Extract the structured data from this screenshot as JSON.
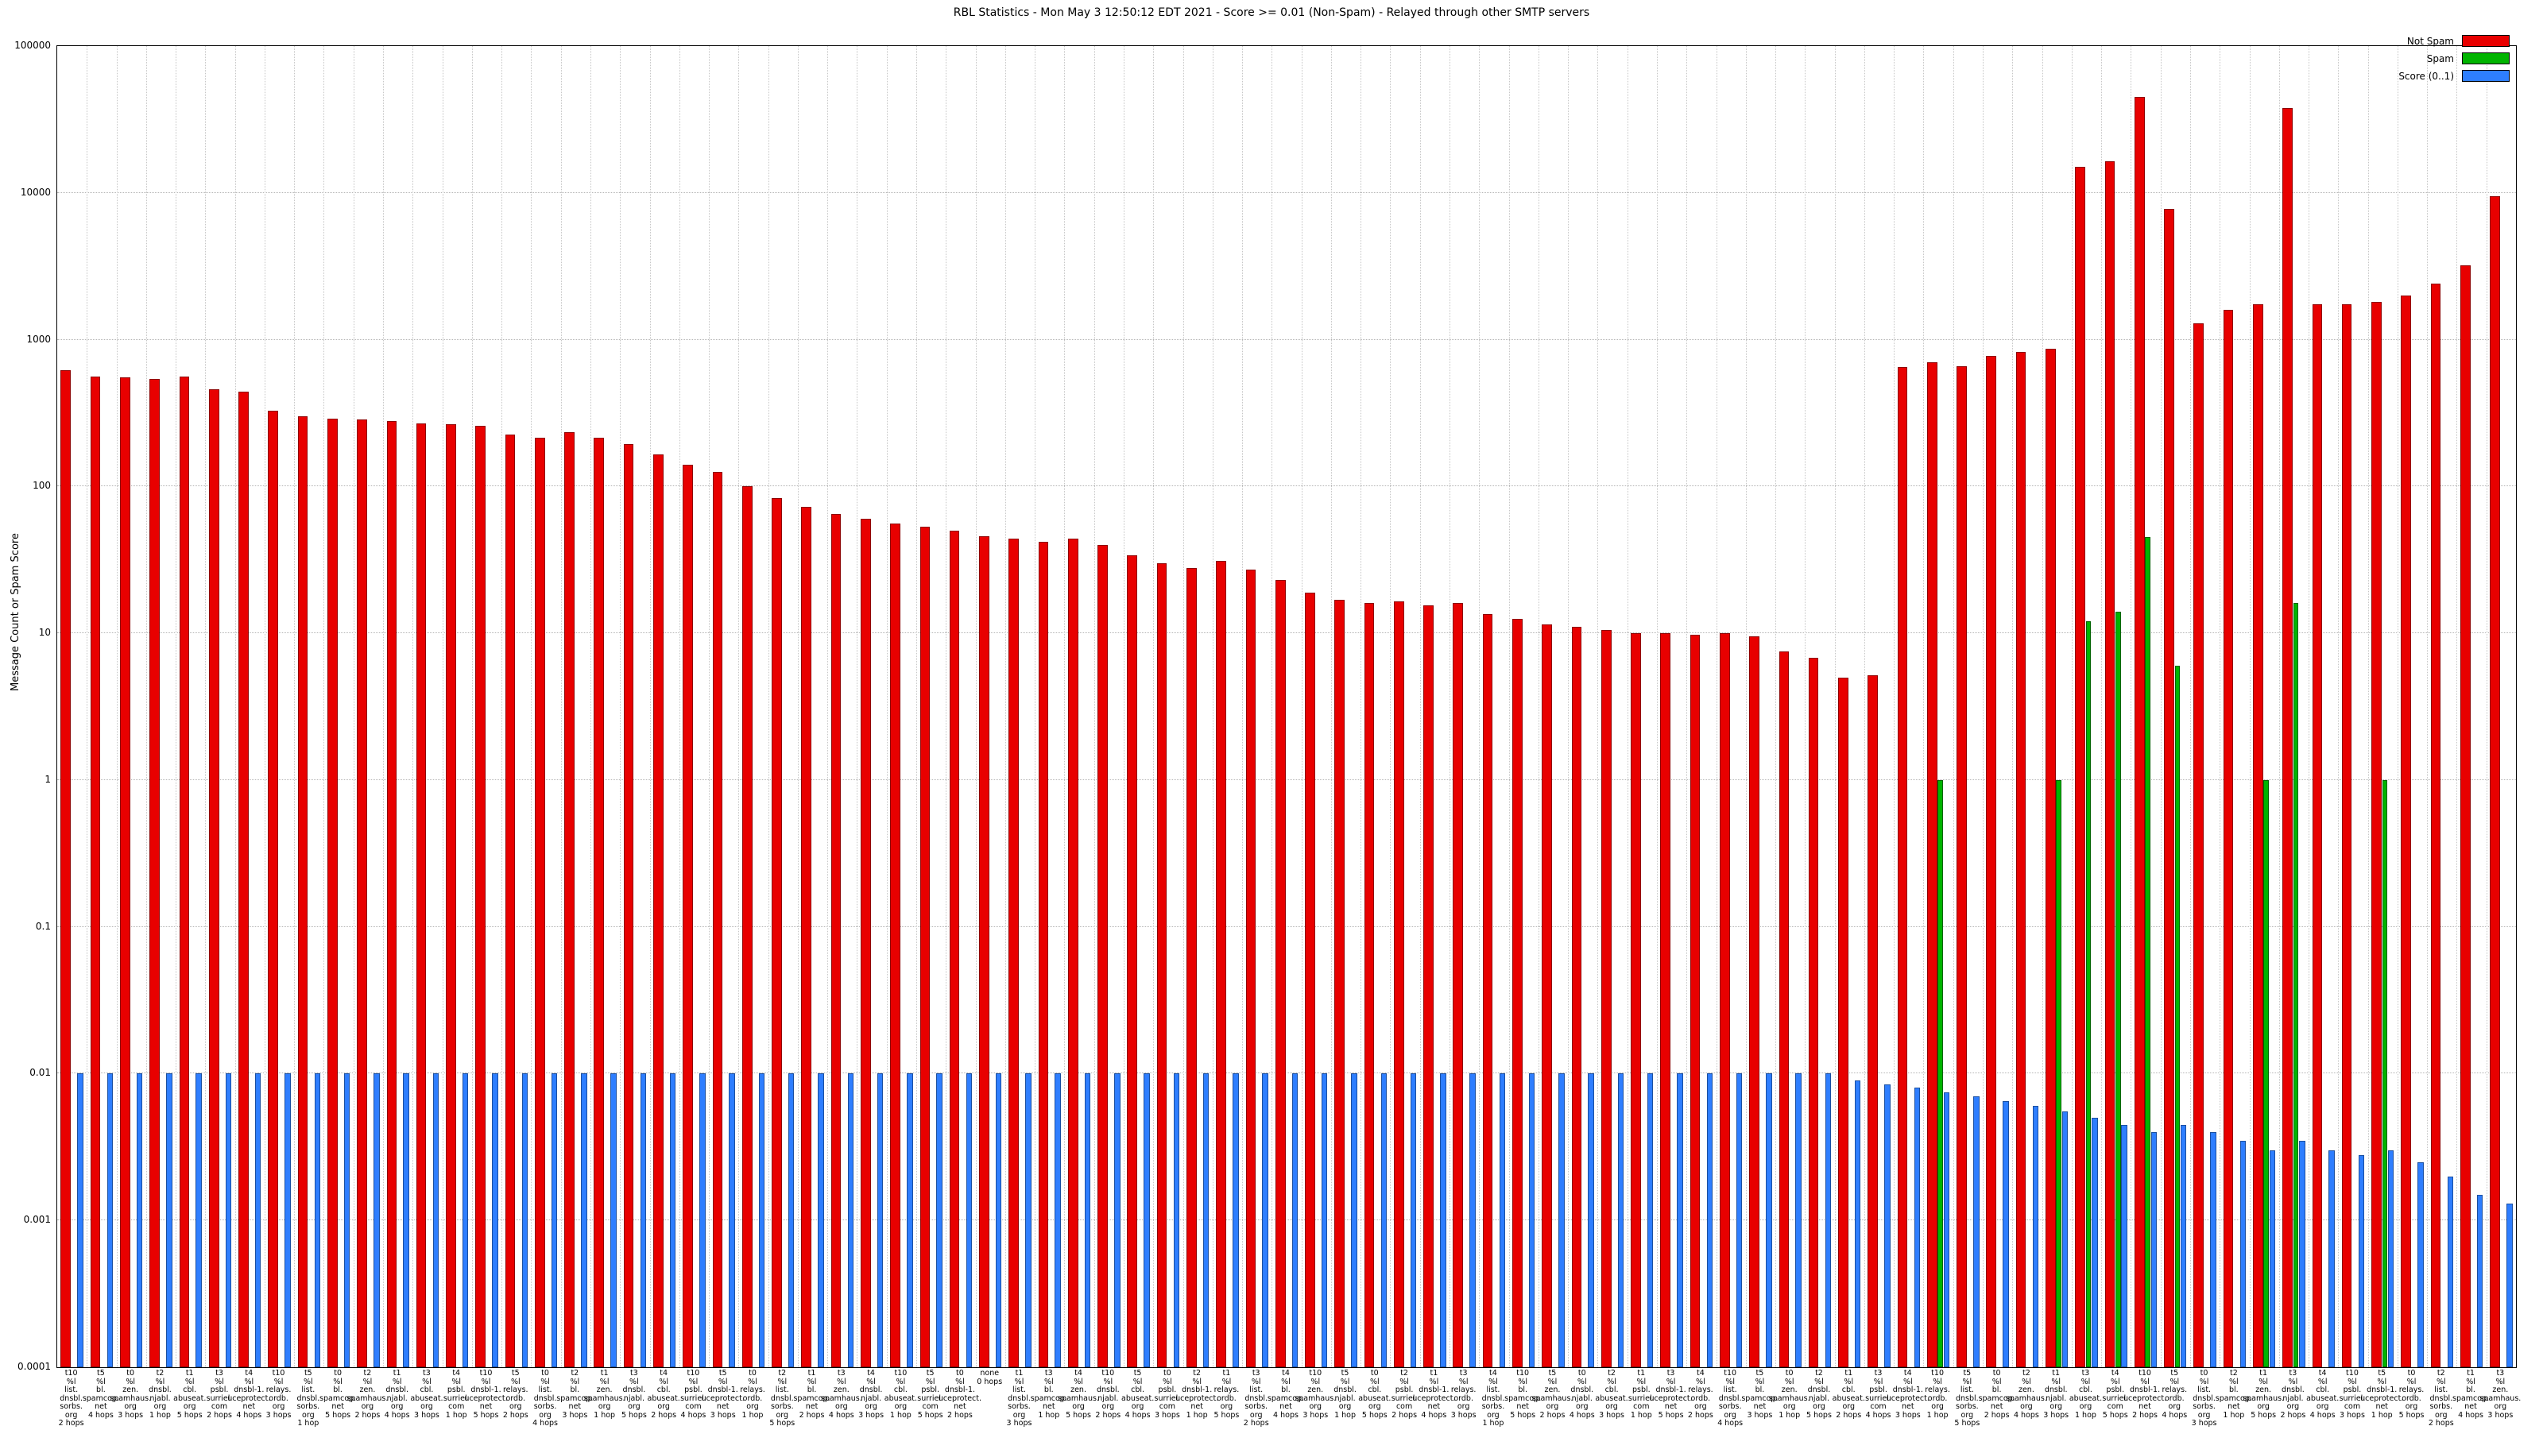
{
  "chart_data": {
    "type": "bar",
    "title": "RBL Statistics - Mon May  3 12:50:12 EDT 2021 - Score >= 0.01 (Non-Spam) - Relayed through other SMTP servers",
    "ylabel": "Message Count or Spam Score",
    "xlabel": "",
    "scale": "log",
    "ylim": [
      0.0001,
      100000
    ],
    "grid": true,
    "legend_position": "top-right",
    "y_ticks": [
      "100000",
      "10000",
      "1000",
      "100",
      "10",
      "1",
      "0.1",
      "0.01",
      "0.001",
      "0.0001"
    ],
    "legend": [
      {
        "label": "Not Spam",
        "color": "#e80000"
      },
      {
        "label": "Spam",
        "color": "#00b400"
      },
      {
        "label": "Score (0..1)",
        "color": "#2e7eff"
      }
    ],
    "series_note": "each group has bars: not_spam (red), spam (green, often absent), score (blue)",
    "groups": [
      {
        "label": "t10\n%l\nlist.\ndnsbl.\nsorbs.\norg\n2 hops",
        "not_spam": 620,
        "spam": null,
        "score": 0.01
      },
      {
        "label": "t5\n%l\nbl.\nspamcop.\nnet\n4 hops",
        "not_spam": 560,
        "spam": null,
        "score": 0.01
      },
      {
        "label": "t0\n%l\nzen.\nspamhaus.\norg\n3 hops",
        "not_spam": 555,
        "spam": null,
        "score": 0.01
      },
      {
        "label": "t2\n%l\ndnsbl.\nnjabl.\norg\n1 hop",
        "not_spam": 540,
        "spam": null,
        "score": 0.01
      },
      {
        "label": "t1\n%l\ncbl.\nabuseat.\norg\n5 hops",
        "not_spam": 560,
        "spam": null,
        "score": 0.01
      },
      {
        "label": "t3\n%l\npsbl.\nsurriel.\ncom\n2 hops",
        "not_spam": 460,
        "spam": null,
        "score": 0.01
      },
      {
        "label": "t4\n%l\ndnsbl-1.\nuceprotect.\nnet\n4 hops",
        "not_spam": 440,
        "spam": null,
        "score": 0.01
      },
      {
        "label": "t10\n%l\nrelays.\nordb.\norg\n3 hops",
        "not_spam": 330,
        "spam": null,
        "score": 0.01
      },
      {
        "label": "t5\n%l\nlist.\ndnsbl.\nsorbs.\norg\n1 hop",
        "not_spam": 300,
        "spam": null,
        "score": 0.01
      },
      {
        "label": "t0\n%l\nbl.\nspamcop.\nnet\n5 hops",
        "not_spam": 290,
        "spam": null,
        "score": 0.01
      },
      {
        "label": "t2\n%l\nzen.\nspamhaus.\norg\n2 hops",
        "not_spam": 285,
        "spam": null,
        "score": 0.01
      },
      {
        "label": "t1\n%l\ndnsbl.\nnjabl.\norg\n4 hops",
        "not_spam": 280,
        "spam": null,
        "score": 0.01
      },
      {
        "label": "t3\n%l\ncbl.\nabuseat.\norg\n3 hops",
        "not_spam": 270,
        "spam": null,
        "score": 0.01
      },
      {
        "label": "t4\n%l\npsbl.\nsurriel.\ncom\n1 hop",
        "not_spam": 265,
        "spam": null,
        "score": 0.01
      },
      {
        "label": "t10\n%l\ndnsbl-1.\nuceprotect.\nnet\n5 hops",
        "not_spam": 260,
        "spam": null,
        "score": 0.01
      },
      {
        "label": "t5\n%l\nrelays.\nordb.\norg\n2 hops",
        "not_spam": 225,
        "spam": null,
        "score": 0.01
      },
      {
        "label": "t0\n%l\nlist.\ndnsbl.\nsorbs.\norg\n4 hops",
        "not_spam": 215,
        "spam": null,
        "score": 0.01
      },
      {
        "label": "t2\n%l\nbl.\nspamcop.\nnet\n3 hops",
        "not_spam": 235,
        "spam": null,
        "score": 0.01
      },
      {
        "label": "t1\n%l\nzen.\nspamhaus.\norg\n1 hop",
        "not_spam": 215,
        "spam": null,
        "score": 0.01
      },
      {
        "label": "t3\n%l\ndnsbl.\nnjabl.\norg\n5 hops",
        "not_spam": 195,
        "spam": null,
        "score": 0.01
      },
      {
        "label": "t4\n%l\ncbl.\nabuseat.\norg\n2 hops",
        "not_spam": 165,
        "spam": null,
        "score": 0.01
      },
      {
        "label": "t10\n%l\npsbl.\nsurriel.\ncom\n4 hops",
        "not_spam": 140,
        "spam": null,
        "score": 0.01
      },
      {
        "label": "t5\n%l\ndnsbl-1.\nuceprotect.\nnet\n3 hops",
        "not_spam": 125,
        "spam": null,
        "score": 0.01
      },
      {
        "label": "t0\n%l\nrelays.\nordb.\norg\n1 hop",
        "not_spam": 100,
        "spam": null,
        "score": 0.01
      },
      {
        "label": "t2\n%l\nlist.\ndnsbl.\nsorbs.\norg\n5 hops",
        "not_spam": 83,
        "spam": null,
        "score": 0.01
      },
      {
        "label": "t1\n%l\nbl.\nspamcop.\nnet\n2 hops",
        "not_spam": 73,
        "spam": null,
        "score": 0.01
      },
      {
        "label": "t3\n%l\nzen.\nspamhaus.\norg\n4 hops",
        "not_spam": 65,
        "spam": null,
        "score": 0.01
      },
      {
        "label": "t4\n%l\ndnsbl.\nnjabl.\norg\n3 hops",
        "not_spam": 60,
        "spam": null,
        "score": 0.01
      },
      {
        "label": "t10\n%l\ncbl.\nabuseat.\norg\n1 hop",
        "not_spam": 56,
        "spam": null,
        "score": 0.01
      },
      {
        "label": "t5\n%l\npsbl.\nsurriel.\ncom\n5 hops",
        "not_spam": 53,
        "spam": null,
        "score": 0.01
      },
      {
        "label": "t0\n%l\ndnsbl-1.\nuceprotect.\nnet\n2 hops",
        "not_spam": 50,
        "spam": null,
        "score": 0.01
      },
      {
        "label": "none\n0 hops",
        "not_spam": 46,
        "spam": null,
        "score": 0.01
      },
      {
        "label": "t1\n%l\nlist.\ndnsbl.\nsorbs.\norg\n3 hops",
        "not_spam": 44,
        "spam": null,
        "score": 0.01
      },
      {
        "label": "t3\n%l\nbl.\nspamcop.\nnet\n1 hop",
        "not_spam": 42,
        "spam": null,
        "score": 0.01
      },
      {
        "label": "t4\n%l\nzen.\nspamhaus.\norg\n5 hops",
        "not_spam": 44,
        "spam": null,
        "score": 0.01
      },
      {
        "label": "t10\n%l\ndnsbl.\nnjabl.\norg\n2 hops",
        "not_spam": 40,
        "spam": null,
        "score": 0.01
      },
      {
        "label": "t5\n%l\ncbl.\nabuseat.\norg\n4 hops",
        "not_spam": 34,
        "spam": null,
        "score": 0.01
      },
      {
        "label": "t0\n%l\npsbl.\nsurriel.\ncom\n3 hops",
        "not_spam": 30,
        "spam": null,
        "score": 0.01
      },
      {
        "label": "t2\n%l\ndnsbl-1.\nuceprotect.\nnet\n1 hop",
        "not_spam": 28,
        "spam": null,
        "score": 0.01
      },
      {
        "label": "t1\n%l\nrelays.\nordb.\norg\n5 hops",
        "not_spam": 31,
        "spam": null,
        "score": 0.01
      },
      {
        "label": "t3\n%l\nlist.\ndnsbl.\nsorbs.\norg\n2 hops",
        "not_spam": 27,
        "spam": null,
        "score": 0.01
      },
      {
        "label": "t4\n%l\nbl.\nspamcop.\nnet\n4 hops",
        "not_spam": 23,
        "spam": null,
        "score": 0.01
      },
      {
        "label": "t10\n%l\nzen.\nspamhaus.\norg\n3 hops",
        "not_spam": 19,
        "spam": null,
        "score": 0.01
      },
      {
        "label": "t5\n%l\ndnsbl.\nnjabl.\norg\n1 hop",
        "not_spam": 17,
        "spam": null,
        "score": 0.01
      },
      {
        "label": "t0\n%l\ncbl.\nabuseat.\norg\n5 hops",
        "not_spam": 16,
        "spam": null,
        "score": 0.01
      },
      {
        "label": "t2\n%l\npsbl.\nsurriel.\ncom\n2 hops",
        "not_spam": 16.5,
        "spam": null,
        "score": 0.01
      },
      {
        "label": "t1\n%l\ndnsbl-1.\nuceprotect.\nnet\n4 hops",
        "not_spam": 15.5,
        "spam": null,
        "score": 0.01
      },
      {
        "label": "t3\n%l\nrelays.\nordb.\norg\n3 hops",
        "not_spam": 16,
        "spam": null,
        "score": 0.01
      },
      {
        "label": "t4\n%l\nlist.\ndnsbl.\nsorbs.\norg\n1 hop",
        "not_spam": 13.5,
        "spam": null,
        "score": 0.01
      },
      {
        "label": "t10\n%l\nbl.\nspamcop.\nnet\n5 hops",
        "not_spam": 12.5,
        "spam": null,
        "score": 0.01
      },
      {
        "label": "t5\n%l\nzen.\nspamhaus.\norg\n2 hops",
        "not_spam": 11.5,
        "spam": null,
        "score": 0.01
      },
      {
        "label": "t0\n%l\ndnsbl.\nnjabl.\norg\n4 hops",
        "not_spam": 11,
        "spam": null,
        "score": 0.01
      },
      {
        "label": "t2\n%l\ncbl.\nabuseat.\norg\n3 hops",
        "not_spam": 10.5,
        "spam": null,
        "score": 0.01
      },
      {
        "label": "t1\n%l\npsbl.\nsurriel.\ncom\n1 hop",
        "not_spam": 10,
        "spam": null,
        "score": 0.01
      },
      {
        "label": "t3\n%l\ndnsbl-1.\nuceprotect.\nnet\n5 hops",
        "not_spam": 10,
        "spam": null,
        "score": 0.01
      },
      {
        "label": "t4\n%l\nrelays.\nordb.\norg\n2 hops",
        "not_spam": 9.8,
        "spam": null,
        "score": 0.01
      },
      {
        "label": "t10\n%l\nlist.\ndnsbl.\nsorbs.\norg\n4 hops",
        "not_spam": 10,
        "spam": null,
        "score": 0.01
      },
      {
        "label": "t5\n%l\nbl.\nspamcop.\nnet\n3 hops",
        "not_spam": 9.5,
        "spam": null,
        "score": 0.01
      },
      {
        "label": "t0\n%l\nzen.\nspamhaus.\norg\n1 hop",
        "not_spam": 7.5,
        "spam": null,
        "score": 0.01
      },
      {
        "label": "t2\n%l\ndnsbl.\nnjabl.\norg\n5 hops",
        "not_spam": 6.8,
        "spam": null,
        "score": 0.01
      },
      {
        "label": "t1\n%l\ncbl.\nabuseat.\norg\n2 hops",
        "not_spam": 5,
        "spam": null,
        "score": 0.009
      },
      {
        "label": "t3\n%l\npsbl.\nsurriel.\ncom\n4 hops",
        "not_spam": 5.2,
        "spam": null,
        "score": 0.0085
      },
      {
        "label": "t4\n%l\ndnsbl-1.\nuceprotect.\nnet\n3 hops",
        "not_spam": 650,
        "spam": null,
        "score": 0.008
      },
      {
        "label": "t10\n%l\nrelays.\nordb.\norg\n1 hop",
        "not_spam": 700,
        "spam": 1,
        "score": 0.0075
      },
      {
        "label": "t5\n%l\nlist.\ndnsbl.\nsorbs.\norg\n5 hops",
        "not_spam": 660,
        "spam": null,
        "score": 0.007
      },
      {
        "label": "t0\n%l\nbl.\nspamcop.\nnet\n2 hops",
        "not_spam": 780,
        "spam": null,
        "score": 0.0065
      },
      {
        "label": "t2\n%l\nzen.\nspamhaus.\norg\n4 hops",
        "not_spam": 820,
        "spam": null,
        "score": 0.006
      },
      {
        "label": "t1\n%l\ndnsbl.\nnjabl.\norg\n3 hops",
        "not_spam": 870,
        "spam": 1,
        "score": 0.0055
      },
      {
        "label": "t3\n%l\ncbl.\nabuseat.\norg\n1 hop",
        "not_spam": 15000,
        "spam": 12,
        "score": 0.005
      },
      {
        "label": "t4\n%l\npsbl.\nsurriel.\ncom\n5 hops",
        "not_spam": 16500,
        "spam": 14,
        "score": 0.0045
      },
      {
        "label": "t10\n%l\ndnsbl-1.\nuceprotect.\nnet\n2 hops",
        "not_spam": 45000,
        "spam": 45,
        "score": 0.004
      },
      {
        "label": "t5\n%l\nrelays.\nordb.\norg\n4 hops",
        "not_spam": 7800,
        "spam": 6,
        "score": 0.0045
      },
      {
        "label": "t0\n%l\nlist.\ndnsbl.\nsorbs.\norg\n3 hops",
        "not_spam": 1300,
        "spam": null,
        "score": 0.004
      },
      {
        "label": "t2\n%l\nbl.\nspamcop.\nnet\n1 hop",
        "not_spam": 1600,
        "spam": null,
        "score": 0.0035
      },
      {
        "label": "t1\n%l\nzen.\nspamhaus.\norg\n5 hops",
        "not_spam": 1750,
        "spam": 1,
        "score": 0.003
      },
      {
        "label": "t3\n%l\ndnsbl.\nnjabl.\norg\n2 hops",
        "not_spam": 38000,
        "spam": 16,
        "score": 0.0035
      },
      {
        "label": "t4\n%l\ncbl.\nabuseat.\norg\n4 hops",
        "not_spam": 1750,
        "spam": null,
        "score": 0.003
      },
      {
        "label": "t10\n%l\npsbl.\nsurriel.\ncom\n3 hops",
        "not_spam": 1750,
        "spam": null,
        "score": 0.0028
      },
      {
        "label": "t5\n%l\ndnsbl-1.\nuceprotect.\nnet\n1 hop",
        "not_spam": 1800,
        "spam": 1,
        "score": 0.003
      },
      {
        "label": "t0\n%l\nrelays.\nordb.\norg\n5 hops",
        "not_spam": 2000,
        "spam": null,
        "score": 0.0025
      },
      {
        "label": "t2\n%l\nlist.\ndnsbl.\nsorbs.\norg\n2 hops",
        "not_spam": 2400,
        "spam": null,
        "score": 0.002
      },
      {
        "label": "t1\n%l\nbl.\nspamcop.\nnet\n4 hops",
        "not_spam": 3200,
        "spam": null,
        "score": 0.0015
      },
      {
        "label": "t3\n%l\nzen.\nspamhaus.\norg\n3 hops",
        "not_spam": 9500,
        "spam": null,
        "score": 0.0013
      }
    ]
  }
}
